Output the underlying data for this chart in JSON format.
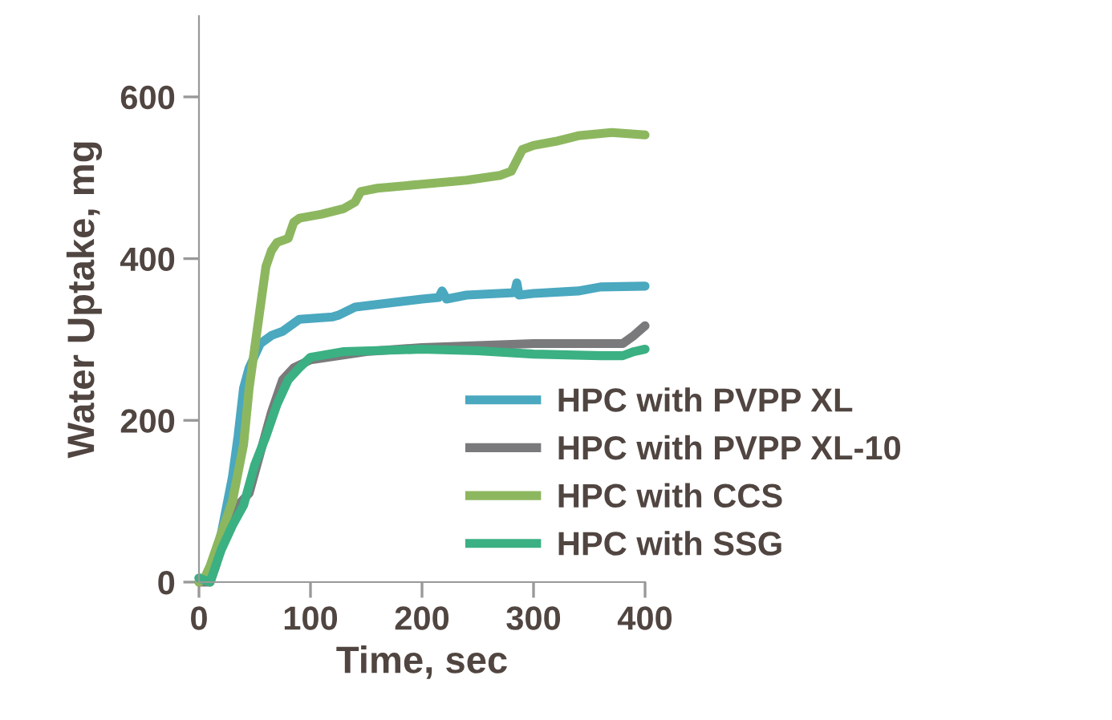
{
  "chart_data": {
    "type": "line",
    "xlabel": "Time, sec",
    "ylabel": "Water Uptake, mg",
    "xlim": [
      0,
      400
    ],
    "ylim": [
      0,
      700
    ],
    "xticks": [
      0,
      100,
      200,
      300,
      400
    ],
    "yticks": [
      0,
      200,
      400,
      600
    ],
    "grid": false,
    "legend": "bottom right",
    "marker": "none",
    "line_style": "solid",
    "series": [
      {
        "name": "HPC with PVPP XL",
        "color": "#4aa8bf",
        "x": [
          0,
          5,
          10,
          20,
          30,
          35,
          40,
          45,
          55,
          65,
          75,
          90,
          120,
          125,
          140,
          200,
          215,
          218,
          222,
          240,
          283,
          285,
          287,
          300,
          340,
          360,
          400
        ],
        "values": [
          5,
          5,
          10,
          60,
          130,
          180,
          240,
          265,
          295,
          305,
          310,
          325,
          328,
          330,
          340,
          350,
          352,
          360,
          350,
          355,
          358,
          370,
          355,
          357,
          360,
          365,
          366
        ]
      },
      {
        "name": "HPC with PVPP XL-10",
        "color": "#7a7a7c",
        "x": [
          0,
          5,
          10,
          15,
          25,
          35,
          45,
          55,
          65,
          75,
          85,
          100,
          150,
          200,
          300,
          380,
          390,
          400
        ],
        "values": [
          0,
          0,
          0,
          20,
          70,
          95,
          110,
          160,
          210,
          250,
          265,
          275,
          285,
          290,
          295,
          295,
          305,
          317
        ]
      },
      {
        "name": "HPC with CCS",
        "color": "#8db75f",
        "x": [
          0,
          5,
          10,
          20,
          30,
          40,
          45,
          50,
          55,
          60,
          65,
          70,
          80,
          85,
          90,
          110,
          130,
          140,
          145,
          160,
          200,
          240,
          270,
          280,
          290,
          300,
          320,
          340,
          370,
          400
        ],
        "values": [
          0,
          5,
          20,
          60,
          100,
          170,
          240,
          290,
          340,
          390,
          410,
          420,
          425,
          445,
          450,
          455,
          462,
          470,
          483,
          487,
          492,
          497,
          503,
          508,
          535,
          540,
          545,
          552,
          556,
          553
        ]
      },
      {
        "name": "HPC with SSG",
        "color": "#3bb083",
        "x": [
          0,
          10,
          20,
          30,
          40,
          50,
          60,
          70,
          80,
          90,
          100,
          130,
          200,
          250,
          300,
          360,
          380,
          390,
          400
        ],
        "values": [
          5,
          0,
          40,
          70,
          95,
          145,
          180,
          220,
          250,
          265,
          278,
          285,
          288,
          286,
          282,
          280,
          280,
          285,
          288
        ]
      }
    ]
  }
}
